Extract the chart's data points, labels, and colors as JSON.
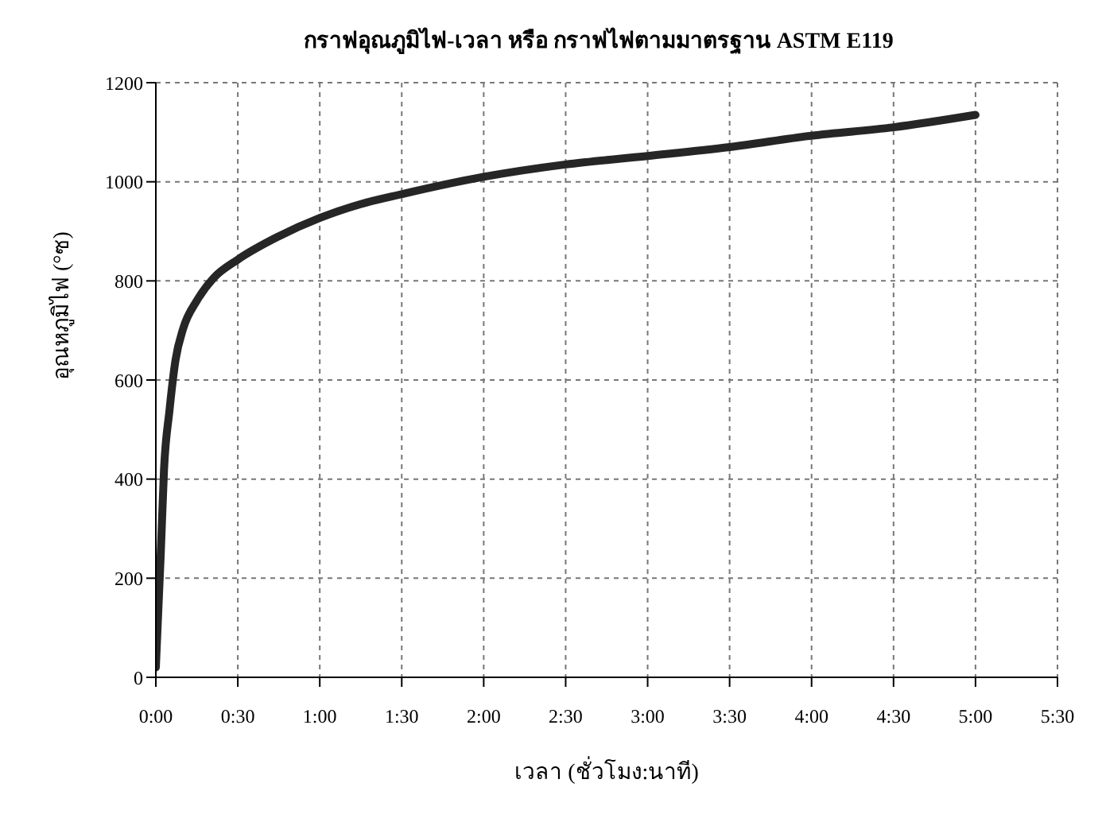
{
  "chart_data": {
    "type": "line",
    "title": "กราฟอุณภูมิไฟ-เวลา หรือ กราฟไฟตามมาตรฐาน ASTM E119",
    "xlabel": "เวลา (ชั่วโมง:นาที)",
    "ylabel": "อุณหภูมิไฟ (°ซ)",
    "x": [
      0,
      0.03,
      0.05,
      0.083,
      0.12,
      0.167,
      0.25,
      0.35,
      0.5,
      0.75,
      1,
      1.25,
      1.5,
      2,
      2.5,
      3,
      3.5,
      4,
      4.5,
      5
    ],
    "series": [
      {
        "color": "#262626",
        "values": [
          20,
          250,
          420,
          538,
          640,
          704,
          760,
          805,
          843,
          890,
          927,
          955,
          975,
          1010,
          1035,
          1052,
          1070,
          1093,
          1110,
          1135
        ]
      }
    ],
    "xlim": [
      0,
      5.5
    ],
    "xticks": [
      {
        "value": 0,
        "label": "0:00"
      },
      {
        "value": 0.5,
        "label": "0:30"
      },
      {
        "value": 1,
        "label": "1:00"
      },
      {
        "value": 1.5,
        "label": "1:30"
      },
      {
        "value": 2,
        "label": "2:00"
      },
      {
        "value": 2.5,
        "label": "2:30"
      },
      {
        "value": 3,
        "label": "3:00"
      },
      {
        "value": 3.5,
        "label": "3:30"
      },
      {
        "value": 4,
        "label": "4:00"
      },
      {
        "value": 4.5,
        "label": "4:30"
      },
      {
        "value": 5,
        "label": "5:00"
      },
      {
        "value": 5.5,
        "label": "5:30"
      }
    ],
    "ylim": [
      0,
      1200
    ],
    "yticks": [
      0,
      200,
      400,
      600,
      800,
      1000,
      1200
    ],
    "grid": true,
    "legend": false,
    "marker": "none",
    "line_style": "solid"
  }
}
